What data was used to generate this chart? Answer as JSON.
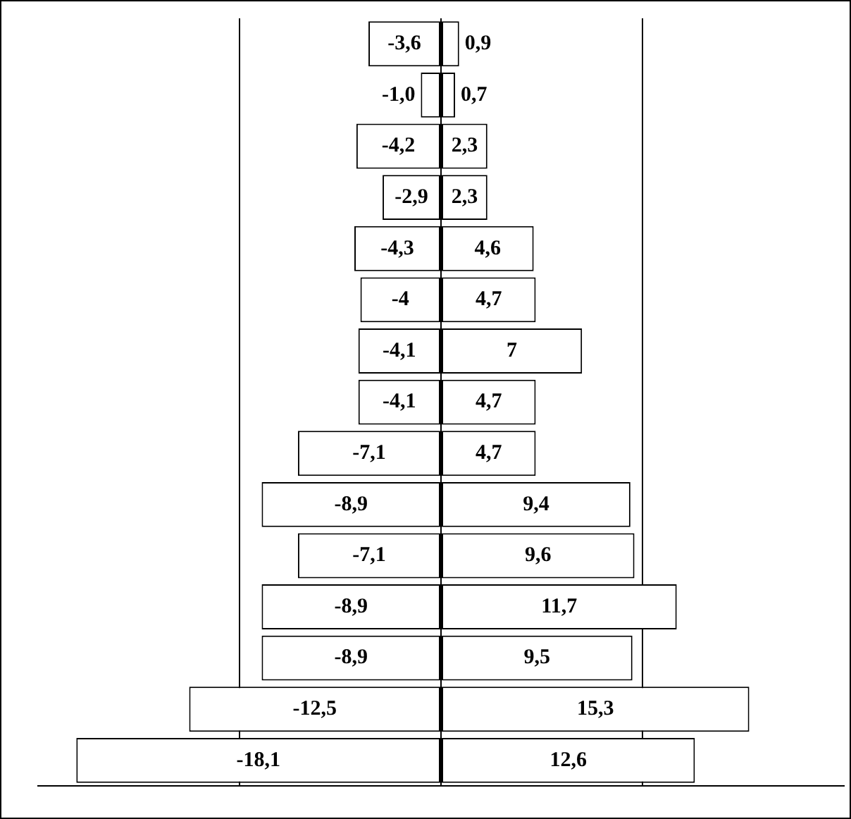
{
  "chart_data": {
    "type": "bar",
    "orientation": "horizontal",
    "stacked": true,
    "relative": false,
    "categories": [
      null,
      null,
      null,
      null,
      null,
      null,
      null,
      null,
      null,
      null,
      null,
      null,
      null,
      null,
      null
    ],
    "series": [
      {
        "color": "#ffffff",
        "values": [
          -3.6,
          -1.0,
          -4.2,
          -2.9,
          -4.3,
          -4,
          -4.1,
          -4.1,
          -7.1,
          -8.9,
          -7.1,
          -8.9,
          -8.9,
          -12.5,
          -18.1
        ],
        "value_labels": [
          "-3,6",
          "-1,0",
          "-4,2",
          "-2,9",
          "-4,3",
          "-4",
          "-4,1",
          "-4,1",
          "-7,1",
          "-8,9",
          "-7,1",
          "-8,9",
          "-8,9",
          "-12,5",
          "-18,1"
        ]
      },
      {
        "color": "#ffffff",
        "values": [
          0.9,
          0.7,
          2.3,
          2.3,
          4.6,
          4.7,
          7,
          4.7,
          4.7,
          9.4,
          9.6,
          11.7,
          9.5,
          15.3,
          12.6
        ],
        "value_labels": [
          "0,9",
          "0,7",
          "2,3",
          "2,3",
          "4,6",
          "4,7",
          "7",
          "4,7",
          "4,7",
          "9,4",
          "9,6",
          "11,7",
          "9,5",
          "15,3",
          "12,6"
        ]
      }
    ],
    "xlim": [
      -20,
      20
    ],
    "xticks": [
      {
        "value": -10,
        "label": null
      },
      {
        "value": 0,
        "label": null
      },
      {
        "value": 10,
        "label": null
      }
    ],
    "grid": "x",
    "legend": false
  }
}
